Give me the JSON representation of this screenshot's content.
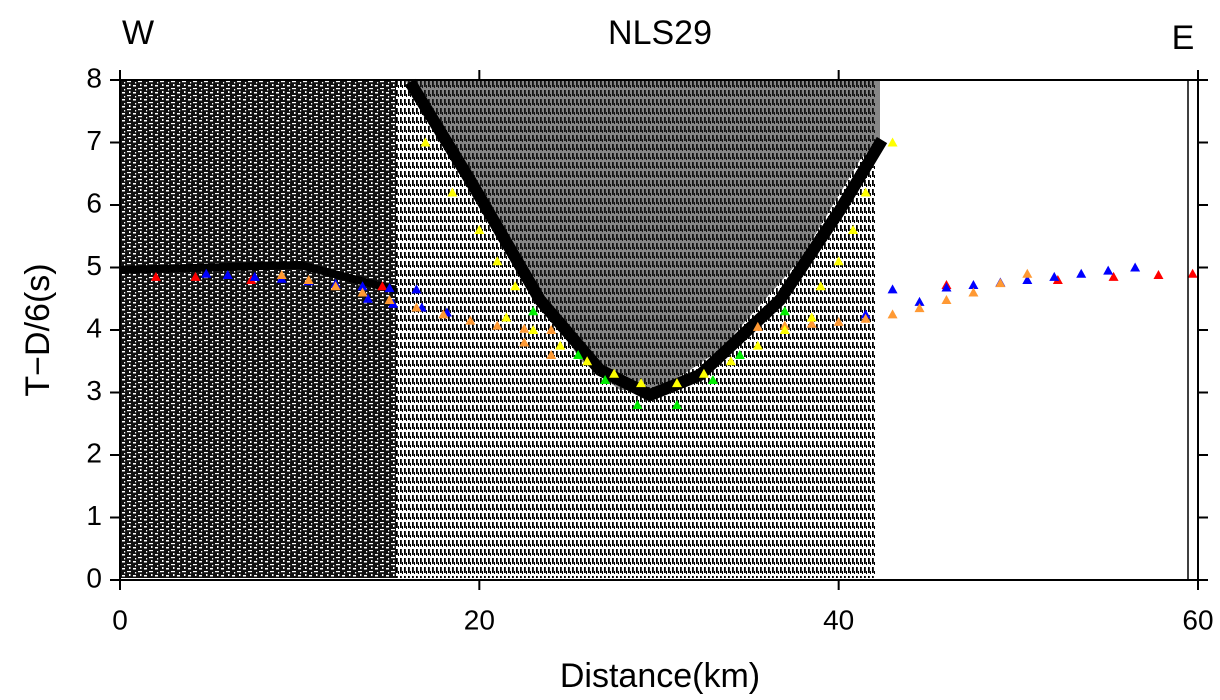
{
  "chart_data": {
    "type": "scatter",
    "title": "NLS29",
    "annotations": [
      "W",
      "E"
    ],
    "x_label": "Distance(km)",
    "y_label": "T−D/6(s)",
    "xlim": [
      0,
      60
    ],
    "xticks": [
      0,
      20,
      40,
      60
    ],
    "ylim": [
      0,
      8
    ],
    "yticks": [
      0,
      1,
      2,
      3,
      4,
      5,
      6,
      7,
      8
    ],
    "series": [
      {
        "color": "#ff0000",
        "x": [
          2.0,
          4.2,
          7.3,
          14.6,
          46.0,
          52.2,
          55.3,
          57.8,
          59.7
        ],
        "values": [
          4.85,
          4.85,
          4.8,
          4.7,
          4.72,
          4.8,
          4.85,
          4.88,
          4.9
        ]
      },
      {
        "color": "#0000ff",
        "x": [
          4.8,
          6,
          7.5,
          9,
          10.5,
          12,
          13.5,
          15,
          16.5,
          13.8,
          15.2,
          16.8,
          18.2,
          41.5,
          43,
          44.5,
          46,
          47.5,
          49,
          50.5,
          52,
          53.5,
          55,
          56.5
        ],
        "values": [
          4.9,
          4.88,
          4.85,
          4.82,
          4.78,
          4.74,
          4.7,
          4.67,
          4.65,
          4.5,
          4.42,
          4.36,
          4.28,
          4.25,
          4.65,
          4.45,
          4.68,
          4.72,
          4.76,
          4.8,
          4.85,
          4.9,
          4.95,
          5.0
        ]
      },
      {
        "color": "#ff9933",
        "x": [
          9,
          10.5,
          12,
          13.5,
          15,
          16.5,
          18,
          19.5,
          21,
          22.5,
          24,
          22.5,
          24,
          35.5,
          37,
          38.5,
          40,
          41.5,
          43,
          44.5,
          46,
          47.5,
          49,
          50.5
        ],
        "values": [
          4.88,
          4.8,
          4.7,
          4.6,
          4.48,
          4.36,
          4.25,
          4.15,
          4.07,
          4.02,
          4.0,
          3.8,
          3.6,
          4.05,
          4.07,
          4.1,
          4.13,
          4.18,
          4.25,
          4.35,
          4.48,
          4.6,
          4.75,
          4.9
        ]
      },
      {
        "color": "#ffff00",
        "x": [
          17,
          18.5,
          20,
          21,
          22,
          21.5,
          23,
          24.5,
          26,
          27.5,
          29,
          31,
          32.5,
          34,
          35.5,
          37,
          38.5,
          39,
          40,
          40.8,
          41.5,
          43
        ],
        "values": [
          7.0,
          6.2,
          5.6,
          5.1,
          4.7,
          4.2,
          4.0,
          3.75,
          3.5,
          3.3,
          3.15,
          3.15,
          3.3,
          3.5,
          3.75,
          4.0,
          4.2,
          4.7,
          5.1,
          5.6,
          6.2,
          7.0
        ]
      },
      {
        "color": "#00ee00",
        "x": [
          23,
          25.5,
          27,
          28.8,
          31,
          33,
          34.5,
          37
        ],
        "values": [
          4.3,
          3.6,
          3.2,
          2.8,
          2.8,
          3.2,
          3.6,
          4.3
        ]
      }
    ]
  }
}
